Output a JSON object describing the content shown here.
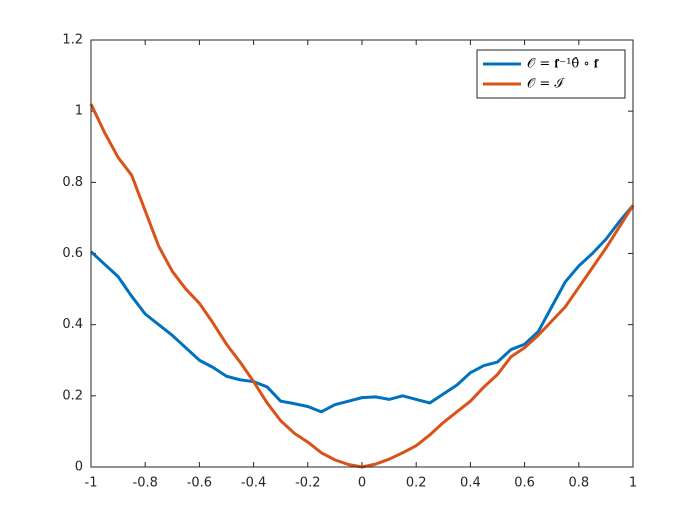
{
  "chart_data": {
    "type": "line",
    "x": [
      -1,
      -0.95,
      -0.9,
      -0.85,
      -0.8,
      -0.75,
      -0.7,
      -0.65,
      -0.6,
      -0.55,
      -0.5,
      -0.45,
      -0.4,
      -0.35,
      -0.3,
      -0.25,
      -0.2,
      -0.15,
      -0.1,
      -0.05,
      0,
      0.05,
      0.1,
      0.15,
      0.2,
      0.25,
      0.3,
      0.35,
      0.4,
      0.45,
      0.5,
      0.55,
      0.6,
      0.65,
      0.7,
      0.75,
      0.8,
      0.85,
      0.9,
      0.95,
      1
    ],
    "series": [
      {
        "name": "𝒪 = 𝐟̂⁻¹θ̂ ∘ 𝐟",
        "color": "#0072BD",
        "values": [
          0.605,
          0.57,
          0.535,
          0.48,
          0.43,
          0.4,
          0.37,
          0.335,
          0.3,
          0.28,
          0.255,
          0.245,
          0.24,
          0.225,
          0.185,
          0.178,
          0.17,
          0.155,
          0.175,
          0.185,
          0.195,
          0.197,
          0.19,
          0.2,
          0.19,
          0.18,
          0.205,
          0.23,
          0.265,
          0.285,
          0.295,
          0.33,
          0.345,
          0.38,
          0.45,
          0.52,
          0.565,
          0.6,
          0.64,
          0.69,
          0.735
        ]
      },
      {
        "name": "𝒪 = ℐ",
        "color": "#D95319",
        "values": [
          1.02,
          0.94,
          0.87,
          0.82,
          0.72,
          0.62,
          0.55,
          0.5,
          0.46,
          0.405,
          0.345,
          0.295,
          0.24,
          0.18,
          0.13,
          0.095,
          0.07,
          0.04,
          0.02,
          0.007,
          0,
          0.008,
          0.022,
          0.04,
          0.06,
          0.09,
          0.125,
          0.155,
          0.185,
          0.225,
          0.26,
          0.31,
          0.335,
          0.37,
          0.41,
          0.45,
          0.505,
          0.56,
          0.615,
          0.675,
          0.735
        ]
      }
    ],
    "xlim": [
      -1,
      1
    ],
    "xticks": [
      -1,
      -0.8,
      -0.6,
      -0.4,
      -0.2,
      0,
      0.2,
      0.4,
      0.6,
      0.8,
      1
    ],
    "ylim": [
      0,
      1.2
    ],
    "yticks": [
      0,
      0.2,
      0.4,
      0.6,
      0.8,
      1,
      1.2
    ],
    "legend": "northeast"
  }
}
